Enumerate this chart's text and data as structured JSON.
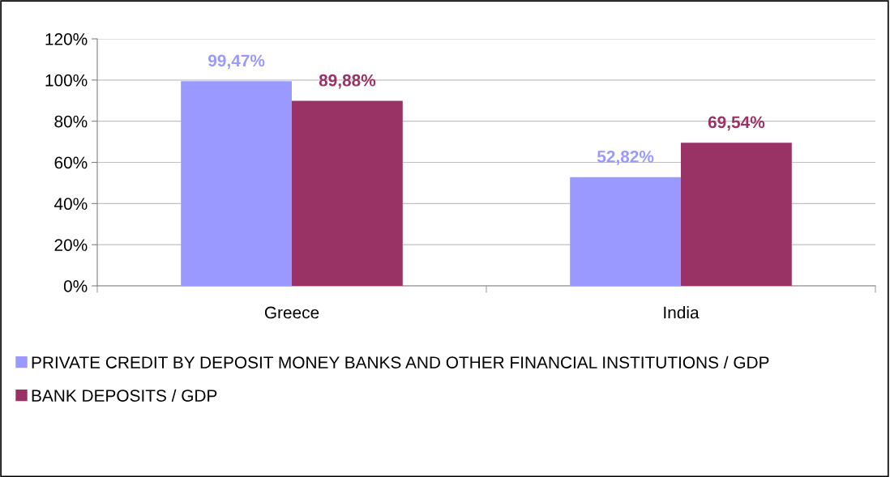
{
  "chart_data": {
    "type": "bar",
    "categories": [
      "Greece",
      "India"
    ],
    "series": [
      {
        "name": "PRIVATE CREDIT BY DEPOSIT MONEY BANKS AND OTHER FINANCIAL INSTITUTIONS / GDP",
        "color": "#9999ff",
        "values": [
          99.47,
          52.82
        ],
        "value_labels": [
          "99,47%",
          "52,82%"
        ]
      },
      {
        "name": "BANK DEPOSITS / GDP",
        "color": "#993366",
        "values": [
          89.88,
          69.54
        ],
        "value_labels": [
          "89,88%",
          "69,54%"
        ]
      }
    ],
    "ylim": [
      0,
      120
    ],
    "yticks": [
      {
        "value": 0,
        "label": "0%"
      },
      {
        "value": 20,
        "label": "20%"
      },
      {
        "value": 40,
        "label": "40%"
      },
      {
        "value": 60,
        "label": "60%"
      },
      {
        "value": 80,
        "label": "80%"
      },
      {
        "value": 100,
        "label": "100%"
      },
      {
        "value": 120,
        "label": "120%"
      }
    ],
    "grid": "y",
    "legend": "bottom"
  }
}
